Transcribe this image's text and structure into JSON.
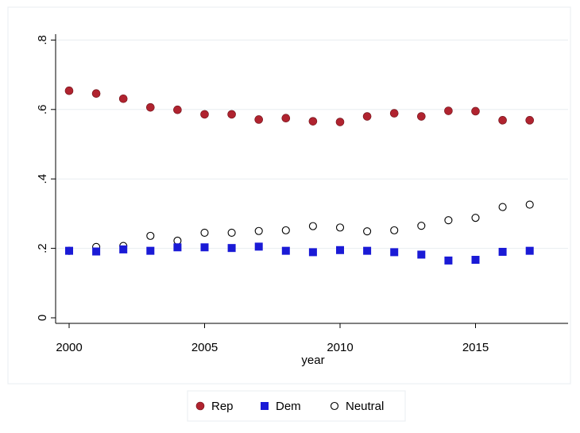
{
  "chart_data": {
    "type": "scatter",
    "xlabel": "year",
    "ylabel": "",
    "xlim": [
      2000,
      2018.5
    ],
    "ylim": [
      -0.005,
      0.81
    ],
    "grid": true,
    "legend_position": "bottom",
    "x_ticks": [
      2000,
      2005,
      2010,
      2015
    ],
    "x_tick_labels": [
      "2000",
      "2005",
      "2010",
      "2015"
    ],
    "y_ticks": [
      0,
      0.2,
      0.4,
      0.6,
      0.8
    ],
    "y_tick_labels": [
      "0",
      ".2",
      ".4",
      ".6",
      ".8"
    ],
    "x": [
      2000,
      2001,
      2002,
      2003,
      2004,
      2005,
      2006,
      2007,
      2008,
      2009,
      2010,
      2011,
      2012,
      2013,
      2014,
      2015,
      2016,
      2017
    ],
    "series": [
      {
        "name": "Rep",
        "marker": "filled-circle",
        "color": "#b0232f",
        "values": [
          0.654,
          0.646,
          0.631,
          0.606,
          0.599,
          0.586,
          0.586,
          0.571,
          0.575,
          0.566,
          0.564,
          0.58,
          0.589,
          0.58,
          0.596,
          0.595,
          0.569,
          0.569
        ]
      },
      {
        "name": "Dem",
        "marker": "filled-square",
        "color": "#1a1ad6",
        "values": [
          0.193,
          0.191,
          0.197,
          0.193,
          0.203,
          0.203,
          0.201,
          0.205,
          0.193,
          0.189,
          0.195,
          0.193,
          0.189,
          0.182,
          0.165,
          0.167,
          0.19,
          0.193
        ]
      },
      {
        "name": "Neutral",
        "marker": "hollow-circle",
        "color": "#000000",
        "values": [
          0.193,
          0.204,
          0.207,
          0.236,
          0.222,
          0.245,
          0.245,
          0.25,
          0.252,
          0.264,
          0.26,
          0.249,
          0.252,
          0.265,
          0.281,
          0.288,
          0.319,
          0.326
        ]
      }
    ]
  },
  "colors": {
    "gridline": "#e8edf0",
    "axis": "#000000",
    "frame": "#e8edf0"
  }
}
